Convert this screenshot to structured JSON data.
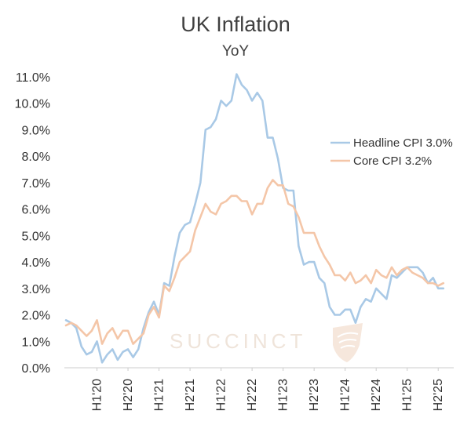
{
  "header": {
    "title": "UK Inflation",
    "subtitle": "YoY"
  },
  "watermark": {
    "text": "SUCCINCT"
  },
  "colors": {
    "headline": "#a9c9e6",
    "core": "#f4c6a8",
    "axis": "#cccccc",
    "watermark": "#efe4da"
  },
  "chart_data": {
    "type": "line",
    "title": "UK Inflation",
    "subtitle": "YoY",
    "xlabel": "",
    "ylabel": "",
    "ylim": [
      0,
      11
    ],
    "yticks": [
      "0.0%",
      "1.0%",
      "2.0%",
      "3.0%",
      "4.0%",
      "5.0%",
      "6.0%",
      "7.0%",
      "8.0%",
      "9.0%",
      "10.0%",
      "11.0%"
    ],
    "xticks": [
      {
        "label": "H1'20",
        "x": 6
      },
      {
        "label": "H2'20",
        "x": 12
      },
      {
        "label": "H1'21",
        "x": 18
      },
      {
        "label": "H2'21",
        "x": 24
      },
      {
        "label": "H1'22",
        "x": 30
      },
      {
        "label": "H2'22",
        "x": 36
      },
      {
        "label": "H1'23",
        "x": 42
      },
      {
        "label": "H2'23",
        "x": 48
      },
      {
        "label": "H1'24",
        "x": 54
      },
      {
        "label": "H2'24",
        "x": 60
      },
      {
        "label": "H1'25",
        "x": 66
      },
      {
        "label": "H2'25",
        "x": 72
      }
    ],
    "x_range": [
      0,
      75
    ],
    "legend_position": "right",
    "series": [
      {
        "name": "Headline CPI 3.0%",
        "color": "#a9c9e6",
        "values": [
          1.8,
          1.7,
          1.5,
          0.8,
          0.5,
          0.6,
          1.0,
          0.2,
          0.5,
          0.7,
          0.3,
          0.6,
          0.7,
          0.4,
          0.7,
          1.5,
          2.1,
          2.5,
          2.0,
          3.2,
          3.1,
          4.2,
          5.1,
          5.4,
          5.5,
          6.2,
          7.0,
          9.0,
          9.1,
          9.4,
          10.1,
          9.9,
          10.1,
          11.1,
          10.7,
          10.5,
          10.1,
          10.4,
          10.1,
          8.7,
          8.7,
          7.9,
          6.8,
          6.7,
          6.7,
          4.6,
          3.9,
          4.0,
          4.0,
          3.4,
          3.2,
          2.3,
          2.0,
          2.0,
          2.2,
          2.2,
          1.7,
          2.3,
          2.6,
          2.5,
          3.0,
          2.8,
          2.6,
          3.5,
          3.4,
          3.6,
          3.8,
          3.8,
          3.8,
          3.6,
          3.2,
          3.4,
          3.0,
          3.0
        ]
      },
      {
        "name": "Core CPI 3.2%",
        "color": "#f4c6a8",
        "values": [
          1.6,
          1.7,
          1.6,
          1.4,
          1.2,
          1.4,
          1.8,
          0.9,
          1.3,
          1.5,
          1.1,
          1.4,
          1.4,
          0.9,
          1.1,
          1.3,
          2.0,
          2.3,
          1.9,
          3.1,
          2.9,
          3.4,
          4.0,
          4.2,
          4.4,
          5.2,
          5.7,
          6.2,
          5.9,
          5.8,
          6.2,
          6.3,
          6.5,
          6.5,
          6.3,
          6.3,
          5.8,
          6.2,
          6.2,
          6.8,
          7.1,
          6.9,
          6.9,
          6.2,
          6.1,
          5.7,
          5.1,
          5.1,
          5.1,
          4.6,
          4.2,
          3.9,
          3.5,
          3.5,
          3.3,
          3.6,
          3.2,
          3.3,
          3.5,
          3.2,
          3.7,
          3.5,
          3.4,
          3.8,
          3.5,
          3.7,
          3.8,
          3.6,
          3.5,
          3.4,
          3.2,
          3.2,
          3.1,
          3.2
        ]
      }
    ]
  }
}
